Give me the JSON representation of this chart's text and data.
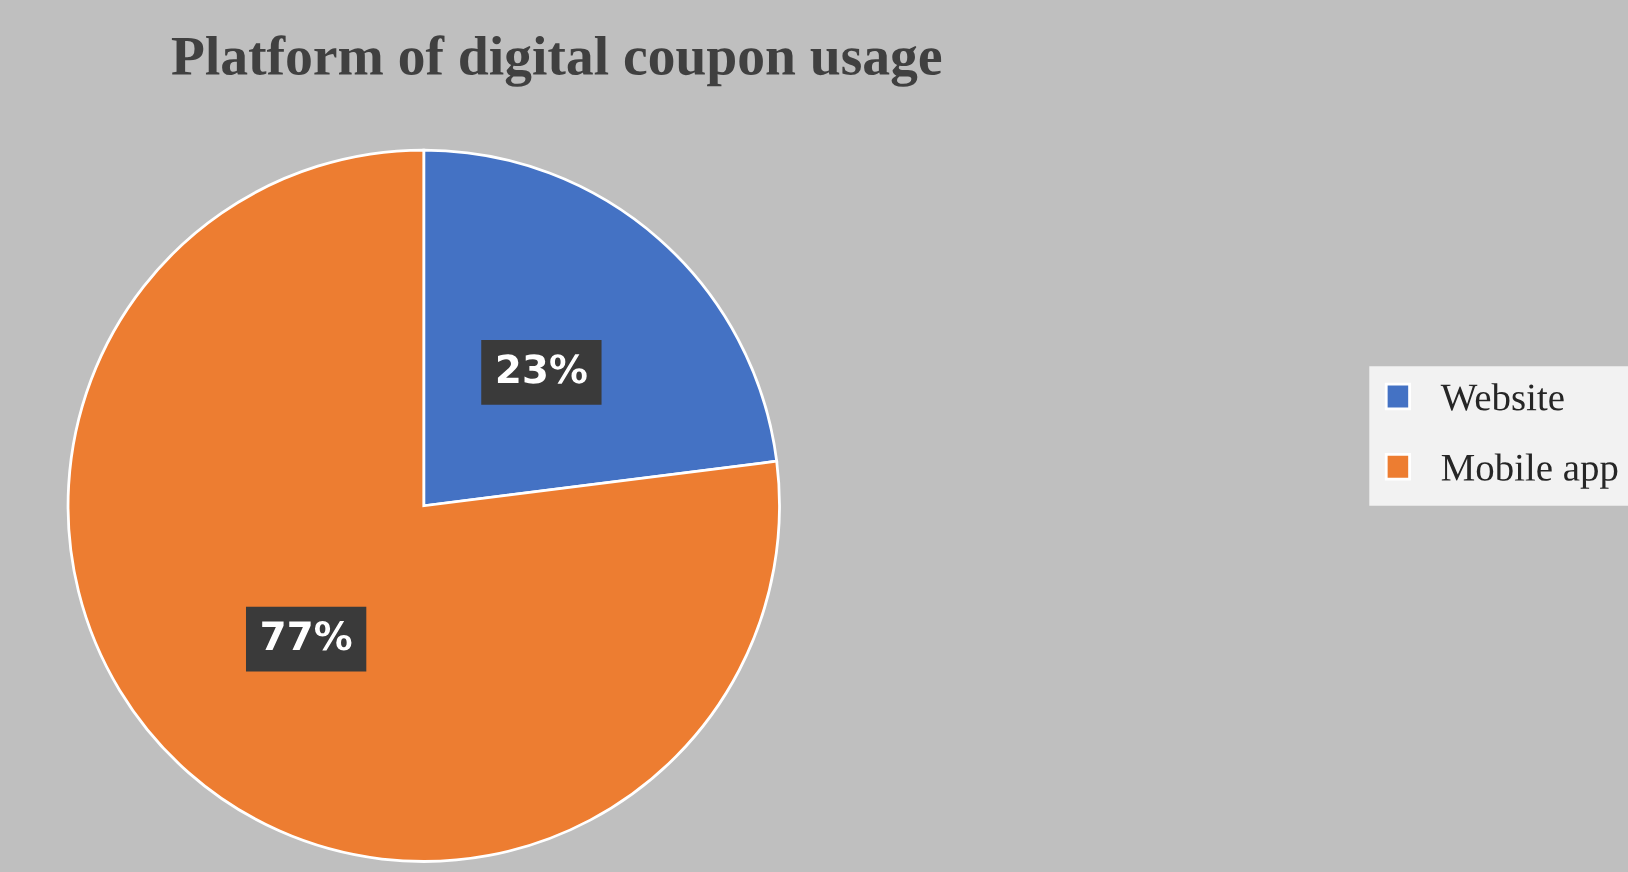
{
  "chart_data": {
    "type": "pie",
    "title": "Platform of digital coupon usage",
    "categories": [
      "Website",
      "Mobile app"
    ],
    "values": [
      23,
      77
    ],
    "colors": [
      "#4472c4",
      "#ed7d31"
    ],
    "value_labels": [
      "23%",
      "77%"
    ],
    "legend": "right"
  }
}
